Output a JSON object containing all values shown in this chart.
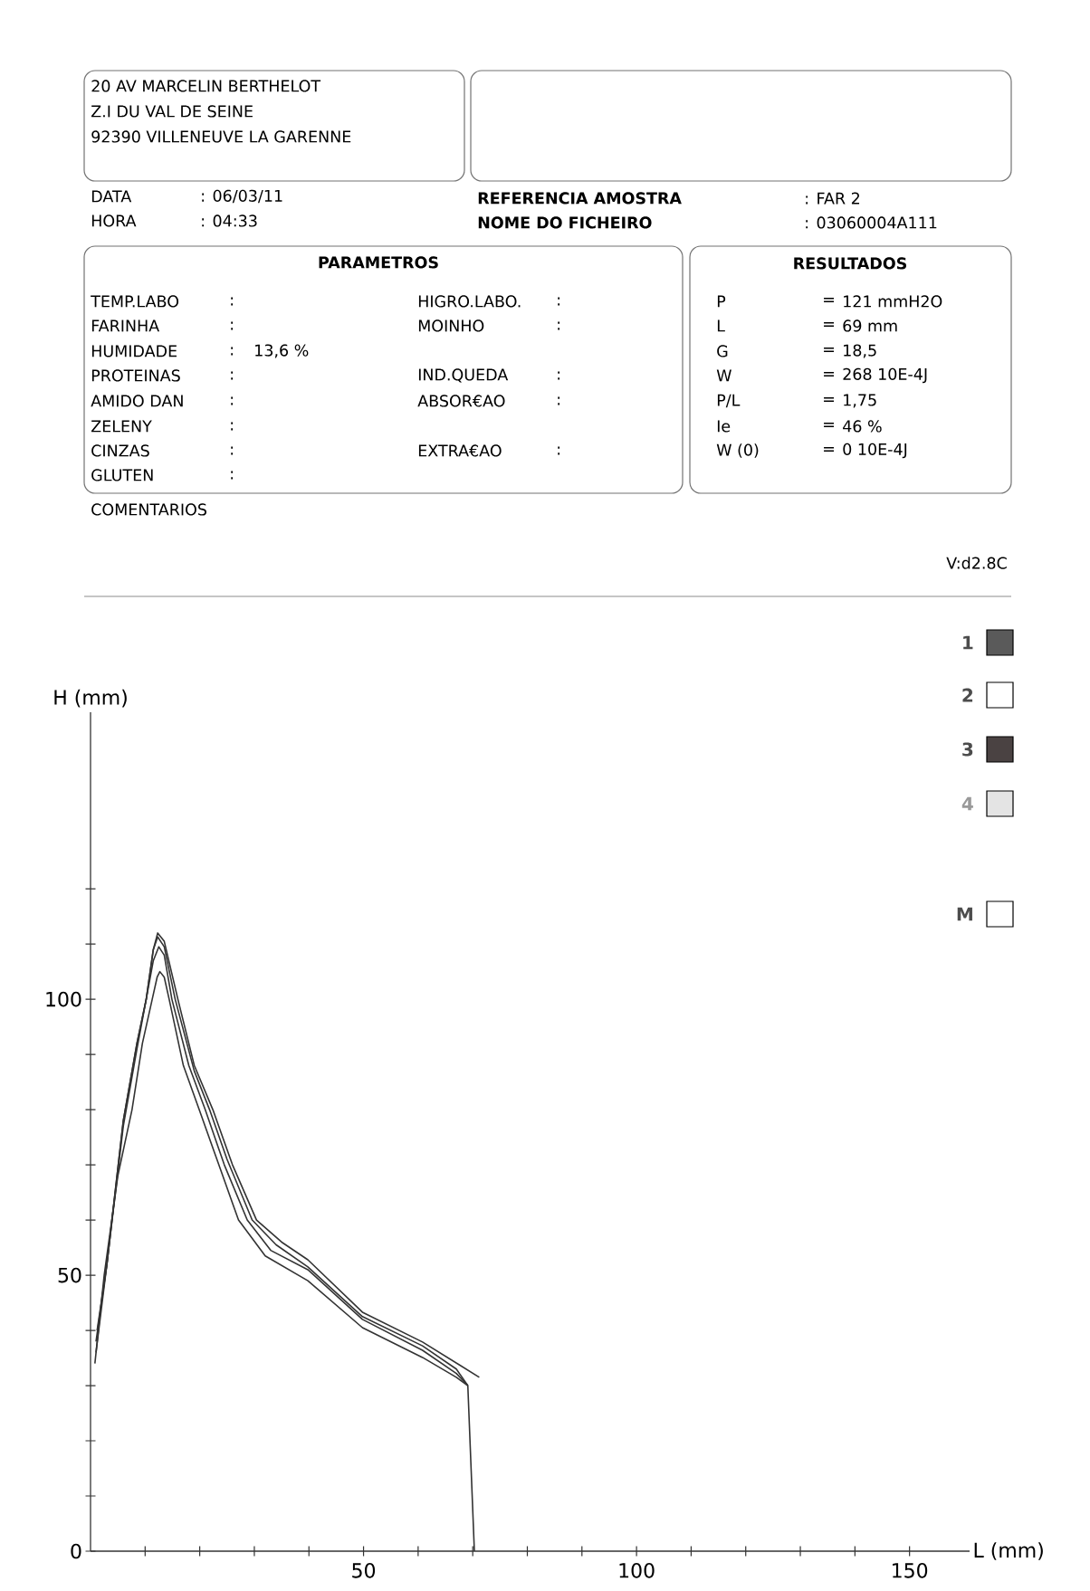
{
  "chart_data": {
    "type": "line",
    "xlabel": "L (mm)",
    "ylabel": "H (mm)",
    "xlim": [
      0,
      161
    ],
    "ylim": [
      0,
      152
    ],
    "xticks": [
      {
        "value": 10,
        "label": null
      },
      {
        "value": 20,
        "label": null
      },
      {
        "value": 30,
        "label": null
      },
      {
        "value": 40,
        "label": null
      },
      50,
      {
        "value": 60,
        "label": null
      },
      {
        "value": 70,
        "label": null
      },
      {
        "value": 80,
        "label": null
      },
      {
        "value": 90,
        "label": null
      },
      100,
      {
        "value": 110,
        "label": null
      },
      {
        "value": 120,
        "label": null
      },
      {
        "value": 130,
        "label": null
      },
      {
        "value": 140,
        "label": null
      },
      150
    ],
    "yticks": [
      0,
      {
        "value": 10,
        "label": null
      },
      {
        "value": 20,
        "label": null
      },
      {
        "value": 30,
        "label": null
      },
      {
        "value": 40,
        "label": null
      },
      50,
      {
        "value": 60,
        "label": null
      },
      {
        "value": 70,
        "label": null
      },
      {
        "value": 80,
        "label": null
      },
      {
        "value": 90,
        "label": null
      },
      100,
      {
        "value": 110,
        "label": null
      },
      {
        "value": 120,
        "label": null
      }
    ],
    "series": [
      {
        "color": "#333333",
        "x": [
          1.0,
          3,
          6,
          8.5,
          10.2,
          11.5,
          12.3,
          13.5,
          16,
          19,
          22.4,
          26,
          30.4,
          35,
          39.8,
          49.8,
          60.8,
          71.2
        ],
        "values": [
          38,
          52,
          78,
          92,
          100,
          109,
          112,
          110.5,
          100,
          88,
          80,
          70,
          60,
          56,
          52.8,
          43.3,
          37.9,
          31.5
        ]
      },
      {
        "color": "#333333",
        "x": [
          1.2,
          3,
          6,
          8.5,
          10.2,
          11.5,
          12.3,
          13.5,
          15.5,
          19,
          21.8,
          25,
          29.6,
          34,
          39.8,
          49.8,
          60.8,
          67,
          69.1
        ],
        "values": [
          40,
          52,
          78,
          92,
          100,
          109,
          111.3,
          109.5,
          100,
          87,
          80,
          71,
          60,
          55.5,
          51.5,
          42.5,
          37.2,
          33,
          30.0
        ]
      },
      {
        "color": "#333333",
        "x": [
          1.0,
          3,
          6,
          8.5,
          10.2,
          11.5,
          12.5,
          13.5,
          14.9,
          18,
          21.0,
          24.5,
          28.7,
          33,
          39.8,
          49.8,
          60.8,
          67,
          69.1,
          70.3
        ],
        "values": [
          36,
          52,
          77,
          91,
          100,
          107,
          109.5,
          108,
          100,
          88,
          80,
          70,
          60,
          54.5,
          51,
          42.0,
          36.4,
          32.2,
          30.0,
          0
        ]
      },
      {
        "color": "#333333",
        "x": [
          0.8,
          2.5,
          5,
          7.6,
          9.5,
          11.3,
          12.2,
          12.7,
          13.5,
          14.4,
          17,
          19.9,
          23.5,
          27.1,
          32,
          39.8,
          49.8,
          60.8,
          67,
          69.1
        ],
        "values": [
          34,
          50,
          68,
          80,
          92,
          100,
          104,
          105,
          104,
          100,
          88,
          80,
          70,
          60,
          53.5,
          49,
          40.5,
          35.1,
          31.5,
          30.0
        ]
      }
    ],
    "annotations": [
      "20 AV MARCELIN BERTHELOT",
      "Z.I DU VAL DE SEINE",
      "92390 VILLENEUVE LA GARENNE",
      "DATA",
      ": 06/03/11",
      "HORA",
      ": 04:33",
      "REFERENCIA AMOSTRA",
      ": FAR 2",
      "NOME DO FICHEIRO",
      ": 03060004A111",
      "PARAMETROS",
      "RESULTADOS",
      "TEMP.LABO",
      ":",
      "FARINHA",
      ":",
      "HUMIDADE",
      ":",
      "13,6 %",
      "PROTEINAS",
      ":",
      "AMIDO DAN",
      ":",
      "ZELENY",
      ":",
      "CINZAS",
      ":",
      "GLUTEN",
      ":",
      "HIGRO.LABO.",
      ":",
      "MOINHO",
      ":",
      "IND.QUEDA",
      ":",
      "ABSOR€AO",
      ":",
      "EXTRA€AO",
      ":",
      "P",
      "=",
      "121 mmH2O",
      "L",
      "=",
      "69 mm",
      "G",
      "=",
      "18,5",
      "W",
      "=",
      "268 10E-4J",
      "P/L",
      "=",
      "1,75",
      "Ie",
      "=",
      "46 %",
      "W (0)",
      "=",
      "0 10E-4J",
      "COMENTARIOS",
      "V:d2.8C",
      "1",
      "2",
      "3",
      "4",
      "M"
    ]
  }
}
